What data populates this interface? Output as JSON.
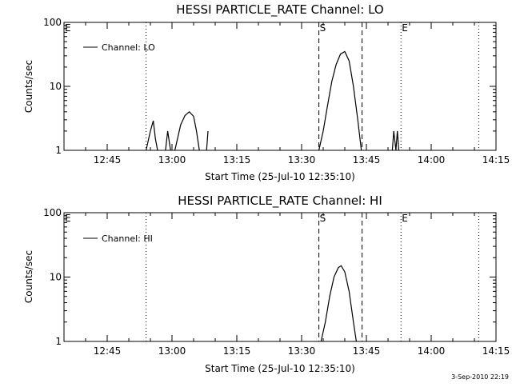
{
  "chart_data": [
    {
      "type": "line",
      "title": "HESSI PARTICLE_RATE Channel: LO",
      "xlabel": "Start Time (25-Jul-10 12:35:10)",
      "ylabel": "Counts/sec",
      "yscale": "log",
      "ylim": [
        1,
        100
      ],
      "xlim": [
        "12:35",
        "14:15"
      ],
      "x_ticks": [
        "12:45",
        "13:00",
        "13:15",
        "13:30",
        "13:45",
        "14:00",
        "14:15"
      ],
      "y_ticks": [
        "1",
        "10",
        "100"
      ],
      "legend": {
        "label": "Channel: LO",
        "position": "top-left"
      },
      "markers": [
        {
          "label": "E",
          "time": "12:35",
          "style": "dotted"
        },
        {
          "label": "",
          "time": "12:54",
          "style": "dotted"
        },
        {
          "label": "S",
          "time": "13:34",
          "style": "dashed"
        },
        {
          "label": "",
          "time": "13:44",
          "style": "dashed"
        },
        {
          "label": "E",
          "time": "13:53",
          "style": "dotted"
        },
        {
          "label": "",
          "time": "14:11",
          "style": "dotted"
        }
      ],
      "series": [
        {
          "name": "Channel: LO",
          "segments": [
            [
              [
                "12:54:00",
                1.0
              ],
              [
                "12:55:00",
                2.0
              ],
              [
                "12:55:40",
                2.9
              ],
              [
                "12:56:10",
                1.5
              ],
              [
                "12:56:40",
                1.0
              ]
            ],
            [
              [
                "12:58:30",
                1.0
              ],
              [
                "12:59:00",
                2.0
              ],
              [
                "12:59:40",
                1.0
              ]
            ],
            [
              [
                "13:00:40",
                1.0
              ],
              [
                "13:02:00",
                2.5
              ],
              [
                "13:03:00",
                3.5
              ],
              [
                "13:04:00",
                4.0
              ],
              [
                "13:05:00",
                3.4
              ],
              [
                "13:05:40",
                2.0
              ],
              [
                "13:06:20",
                1.0
              ]
            ],
            [
              [
                "13:08:00",
                1.0
              ],
              [
                "13:08:20",
                2.0
              ]
            ],
            [
              [
                "13:34:00",
                1.0
              ],
              [
                "13:35:00",
                2.0
              ],
              [
                "13:36:00",
                5.0
              ],
              [
                "13:37:00",
                12.0
              ],
              [
                "13:38:00",
                22.0
              ],
              [
                "13:39:00",
                32.0
              ],
              [
                "13:40:00",
                35.0
              ],
              [
                "13:41:00",
                25.0
              ],
              [
                "13:42:00",
                10.0
              ],
              [
                "13:43:00",
                3.0
              ],
              [
                "13:43:50",
                1.0
              ]
            ],
            [
              [
                "13:51:00",
                1.0
              ],
              [
                "13:51:20",
                2.0
              ],
              [
                "13:51:50",
                1.0
              ],
              [
                "13:52:10",
                2.0
              ],
              [
                "13:52:30",
                1.0
              ]
            ]
          ]
        }
      ]
    },
    {
      "type": "line",
      "title": "HESSI PARTICLE_RATE Channel: HI",
      "xlabel": "Start Time (25-Jul-10 12:35:10)",
      "ylabel": "Counts/sec",
      "yscale": "log",
      "ylim": [
        1,
        100
      ],
      "xlim": [
        "12:35",
        "14:15"
      ],
      "x_ticks": [
        "12:45",
        "13:00",
        "13:15",
        "13:30",
        "13:45",
        "14:00",
        "14:15"
      ],
      "y_ticks": [
        "1",
        "10",
        "100"
      ],
      "legend": {
        "label": "Channel: HI",
        "position": "top-left"
      },
      "markers": [
        {
          "label": "E",
          "time": "12:35",
          "style": "dotted"
        },
        {
          "label": "",
          "time": "12:54",
          "style": "dotted"
        },
        {
          "label": "S",
          "time": "13:34",
          "style": "dashed"
        },
        {
          "label": "",
          "time": "13:44",
          "style": "dashed"
        },
        {
          "label": "E",
          "time": "13:53",
          "style": "dotted"
        },
        {
          "label": "",
          "time": "14:11",
          "style": "dotted"
        }
      ],
      "series": [
        {
          "name": "Channel: HI",
          "segments": [
            [
              [
                "13:34:30",
                1.0
              ],
              [
                "13:35:30",
                2.0
              ],
              [
                "13:36:30",
                5.0
              ],
              [
                "13:37:30",
                10.0
              ],
              [
                "13:38:30",
                14.0
              ],
              [
                "13:39:10",
                15.0
              ],
              [
                "13:40:00",
                12.0
              ],
              [
                "13:41:00",
                6.0
              ],
              [
                "13:42:00",
                2.0
              ],
              [
                "13:42:40",
                1.0
              ]
            ]
          ]
        }
      ]
    }
  ],
  "footer": {
    "stamp": "3-Sep-2010 22:19"
  }
}
